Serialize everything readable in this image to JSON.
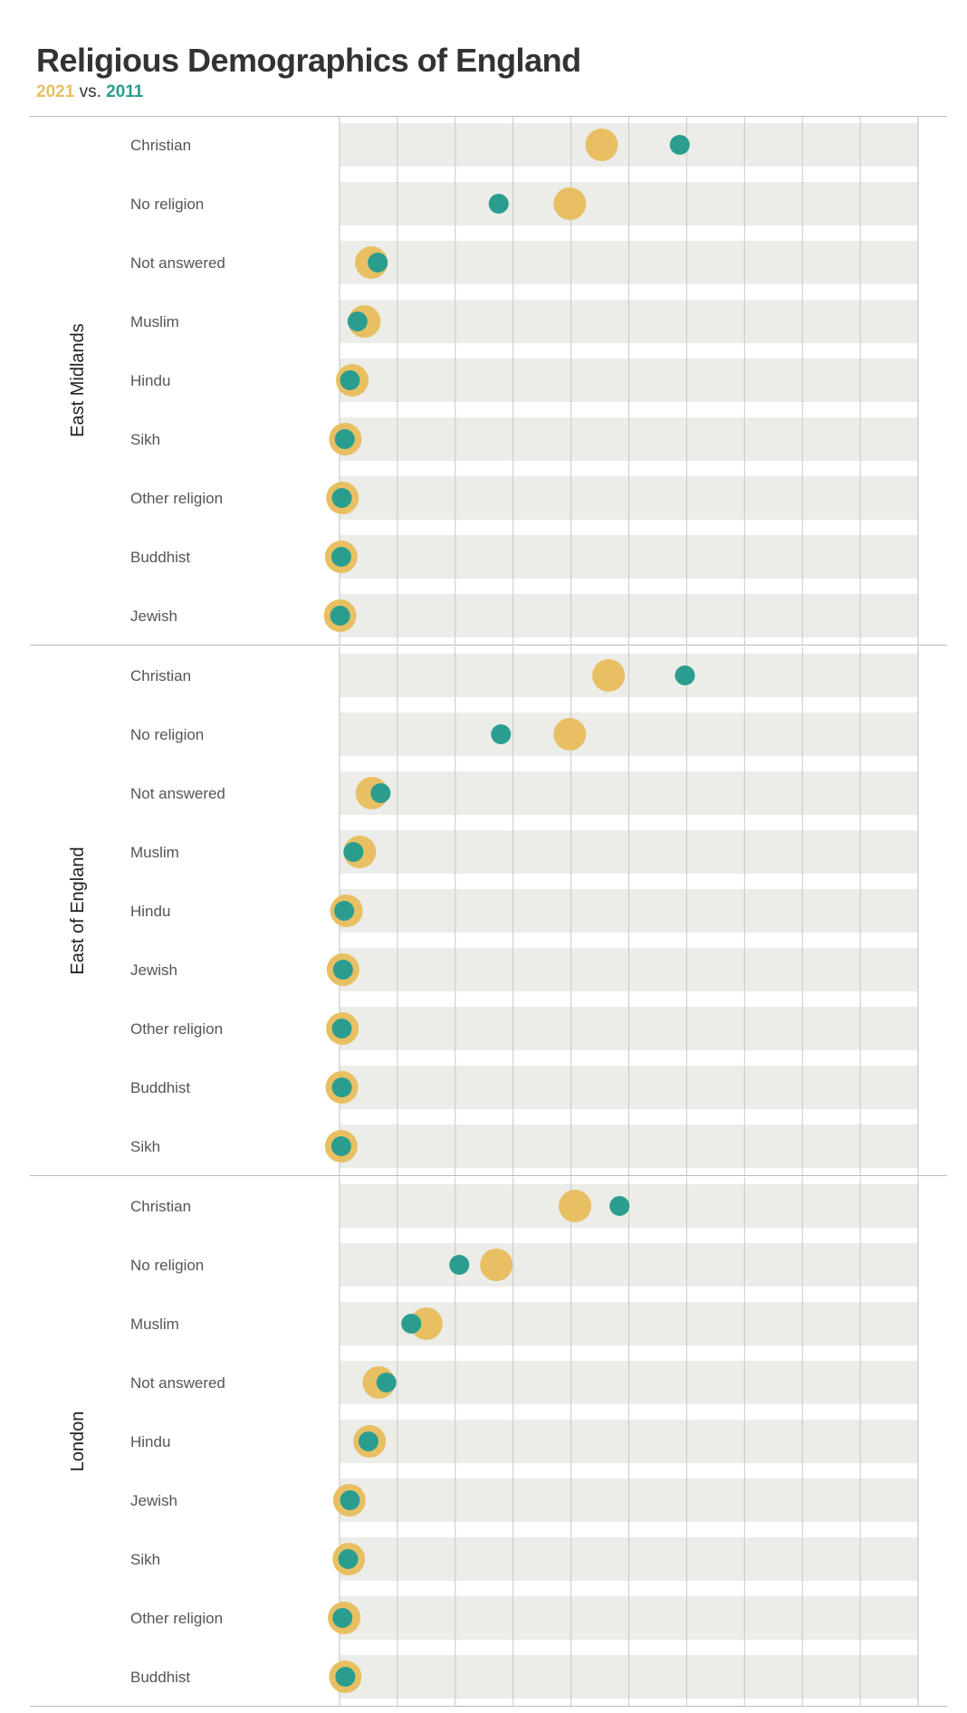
{
  "title": "Religious Demographics of England",
  "legend": {
    "y2021": "2021",
    "sep": "vs.",
    "y2011": "2011"
  },
  "colors": {
    "y2021": "#e8c063",
    "y2011": "#2a9d8f",
    "band": "#ececE8",
    "grid": "#c8c8c8",
    "divider": "#bbbbbb"
  },
  "chart_data": {
    "type": "dot-plot",
    "title": "Religious Demographics of England",
    "legend": [
      "2021",
      "2011"
    ],
    "x_unit": "percent of population",
    "xlim": [
      0,
      100
    ],
    "groups": [
      {
        "name": "East Midlands",
        "rows": [
          {
            "label": "Christian",
            "v2021": 45.3,
            "v2011": 58.8
          },
          {
            "label": "No religion",
            "v2021": 39.8,
            "v2011": 27.5
          },
          {
            "label": "Not answered",
            "v2021": 5.5,
            "v2011": 6.6
          },
          {
            "label": "Muslim",
            "v2021": 4.3,
            "v2011": 3.1
          },
          {
            "label": "Hindu",
            "v2021": 2.2,
            "v2011": 1.8
          },
          {
            "label": "Sikh",
            "v2021": 1.0,
            "v2011": 0.9
          },
          {
            "label": "Other religion",
            "v2021": 0.5,
            "v2011": 0.4
          },
          {
            "label": "Buddhist",
            "v2021": 0.3,
            "v2011": 0.3
          },
          {
            "label": "Jewish",
            "v2021": 0.1,
            "v2011": 0.1
          }
        ]
      },
      {
        "name": "East of England",
        "rows": [
          {
            "label": "Christian",
            "v2021": 46.5,
            "v2011": 59.7
          },
          {
            "label": "No religion",
            "v2021": 39.8,
            "v2011": 27.9
          },
          {
            "label": "Not answered",
            "v2021": 5.6,
            "v2011": 7.1
          },
          {
            "label": "Muslim",
            "v2021": 3.5,
            "v2011": 2.4
          },
          {
            "label": "Hindu",
            "v2021": 1.2,
            "v2011": 0.8
          },
          {
            "label": "Jewish",
            "v2021": 0.6,
            "v2011": 0.6
          },
          {
            "label": "Other religion",
            "v2021": 0.5,
            "v2011": 0.4
          },
          {
            "label": "Buddhist",
            "v2021": 0.4,
            "v2011": 0.4
          },
          {
            "label": "Sikh",
            "v2021": 0.3,
            "v2011": 0.3
          }
        ]
      },
      {
        "name": "London",
        "rows": [
          {
            "label": "Christian",
            "v2021": 40.7,
            "v2011": 48.4
          },
          {
            "label": "No religion",
            "v2021": 27.1,
            "v2011": 20.7
          },
          {
            "label": "Muslim",
            "v2021": 15.0,
            "v2011": 12.4
          },
          {
            "label": "Not answered",
            "v2021": 6.8,
            "v2011": 8.1
          },
          {
            "label": "Hindu",
            "v2021": 5.2,
            "v2011": 5.0
          },
          {
            "label": "Jewish",
            "v2021": 1.7,
            "v2011": 1.8
          },
          {
            "label": "Sikh",
            "v2021": 1.6,
            "v2011": 1.5
          },
          {
            "label": "Other religion",
            "v2021": 0.8,
            "v2011": 0.5
          },
          {
            "label": "Buddhist",
            "v2021": 1.0,
            "v2011": 1.0
          }
        ]
      }
    ]
  }
}
